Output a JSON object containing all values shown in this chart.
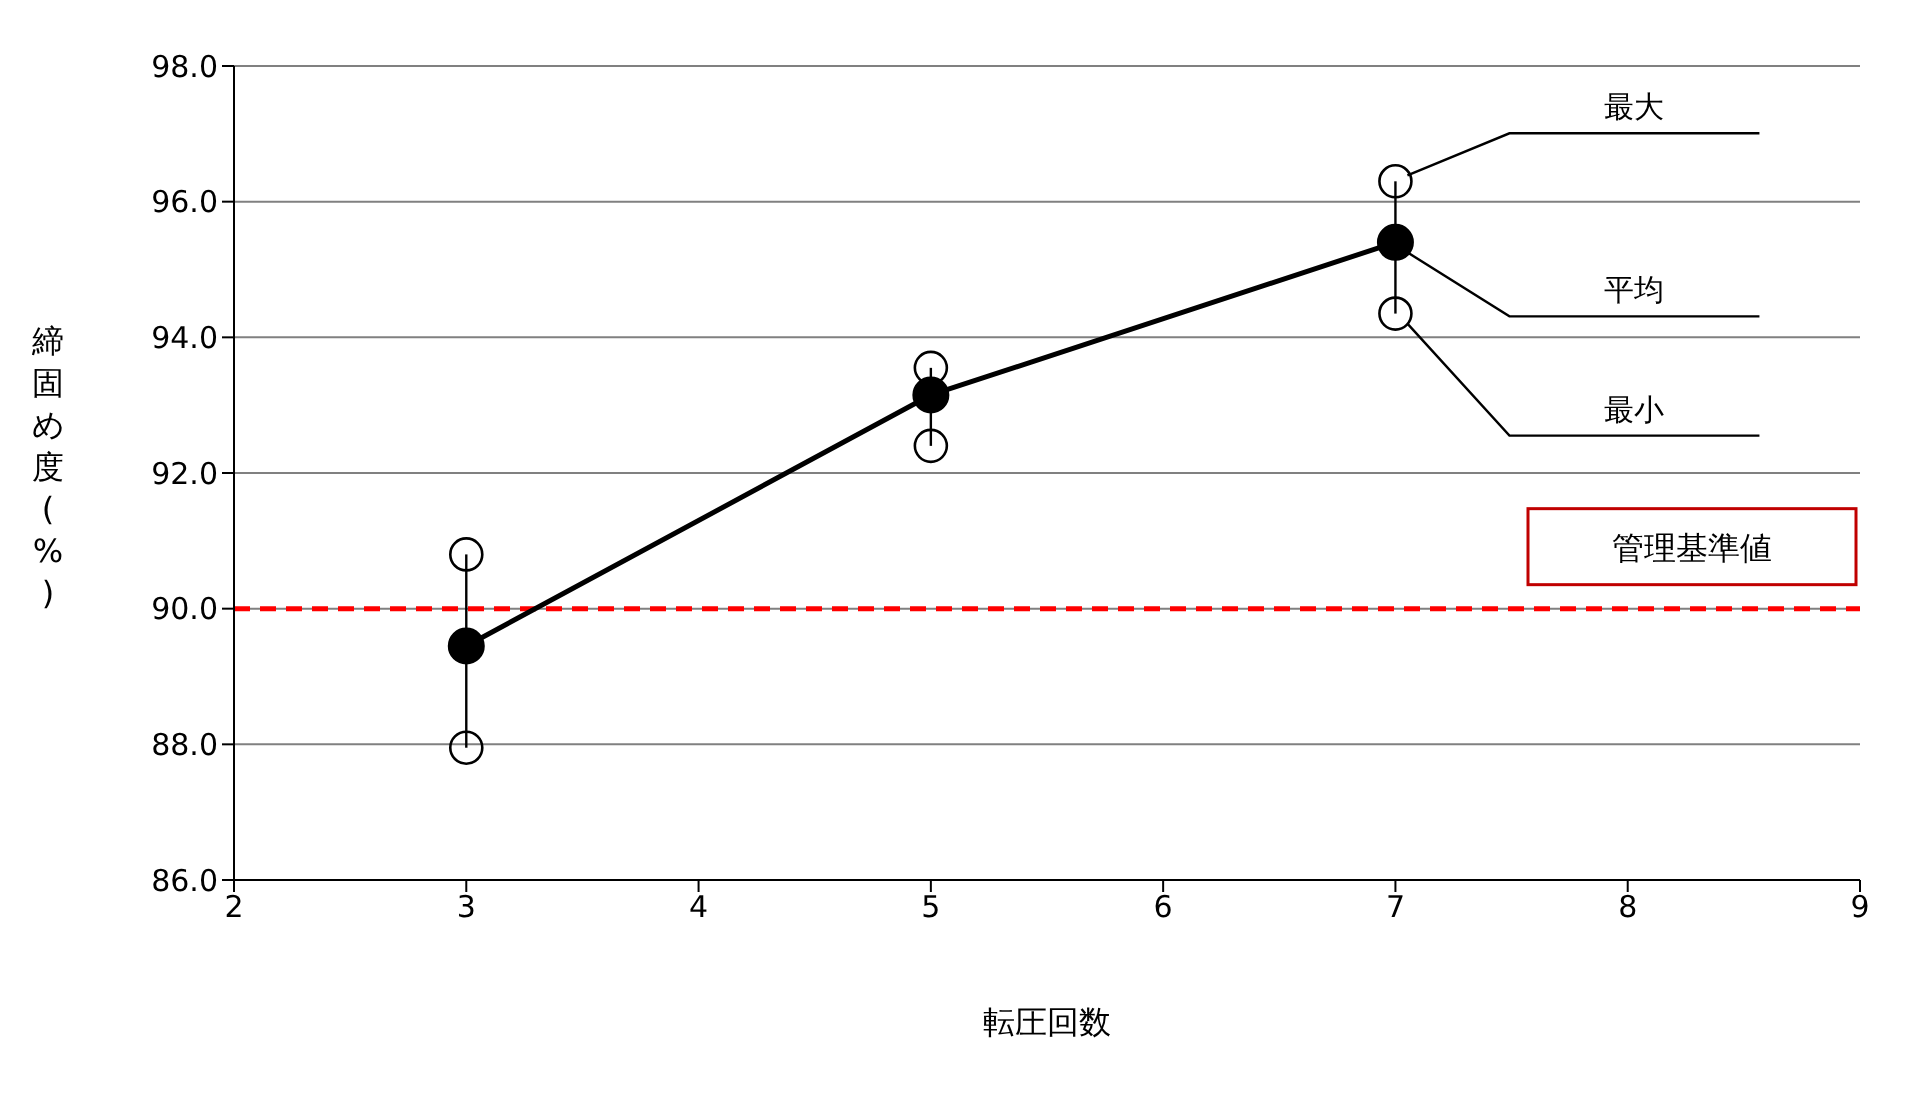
{
  "chart_data": {
    "type": "line",
    "xlabel": "転圧回数",
    "ylabel": "締固め度(%)",
    "x": [
      3,
      5,
      7
    ],
    "series": [
      {
        "name": "平均",
        "color": "#000000",
        "values": [
          89.45,
          93.15,
          95.4
        ],
        "errors": [
          [
            87.95,
            90.8
          ],
          [
            92.4,
            93.55
          ],
          [
            94.35,
            96.3
          ]
        ]
      },
      {
        "name": "最大",
        "type": "scatter",
        "color": "#000000",
        "values": [
          90.8,
          93.55,
          96.3
        ]
      },
      {
        "name": "最小",
        "type": "scatter",
        "color": "#000000",
        "values": [
          87.95,
          92.4,
          94.35
        ]
      }
    ],
    "xlim": [
      2,
      9
    ],
    "xticks": [
      2,
      3,
      4,
      5,
      6,
      7,
      8,
      9
    ],
    "ylim": [
      86,
      98
    ],
    "yticks": [
      {
        "value": 86,
        "label": "86.0"
      },
      {
        "value": 88,
        "label": "88.0"
      },
      {
        "value": 90,
        "label": "90.0"
      },
      {
        "value": 92,
        "label": "92.0"
      },
      {
        "value": 94,
        "label": "94.0"
      },
      {
        "value": 96,
        "label": "96.0"
      },
      {
        "value": 98,
        "label": "98.0"
      }
    ],
    "ref_lines": [
      {
        "axis": "y",
        "value": 90,
        "label": "管理基準値",
        "color": "#ff0000",
        "line_style": "dashed"
      }
    ],
    "grid": "y",
    "marker": "circle",
    "line_style": "solid"
  }
}
